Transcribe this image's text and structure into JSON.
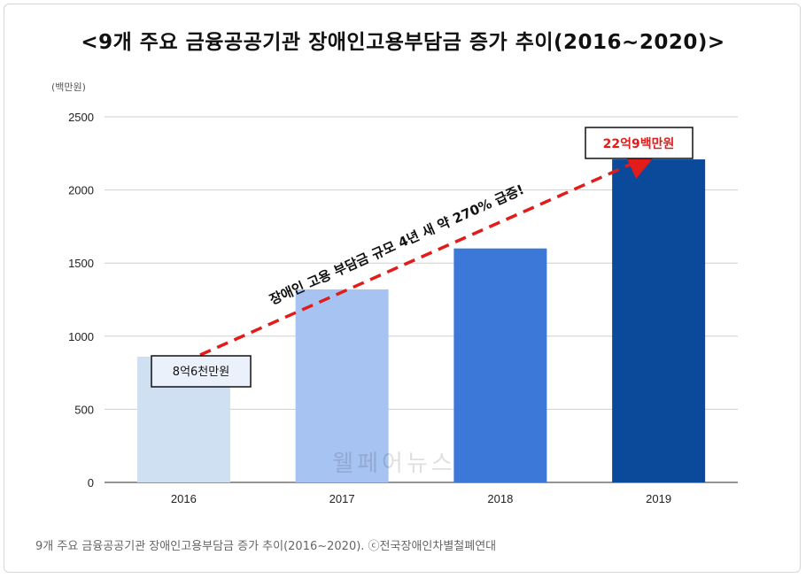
{
  "title": "<9개 주요 금융공공기관 장애인고용부담금 증가 추이(2016~2020)>",
  "caption": "9개 주요 금융공공기관 장애인고용부담금 증가 추이(2016~2020). ⓒ전국장애인차별철폐연대",
  "watermark": "웰페어뉴스",
  "chart_data": {
    "type": "bar",
    "unit_label": "(백만원)",
    "categories": [
      "2016",
      "2017",
      "2018",
      "2019"
    ],
    "values": [
      860,
      1320,
      1600,
      2209
    ],
    "colors": [
      "#cfe0f3",
      "#a7c3f2",
      "#3c78d8",
      "#0b4a9b"
    ],
    "ylim": [
      0,
      2500
    ],
    "yticks": [
      0,
      500,
      1000,
      1500,
      2000,
      2500
    ],
    "grid": true,
    "annotations": {
      "label_2016": "8억6천만원",
      "label_2019": "22억9백만원",
      "trend_text": "장애인 고용 부담금 규모 4년 새 약 270% 급증!"
    }
  }
}
